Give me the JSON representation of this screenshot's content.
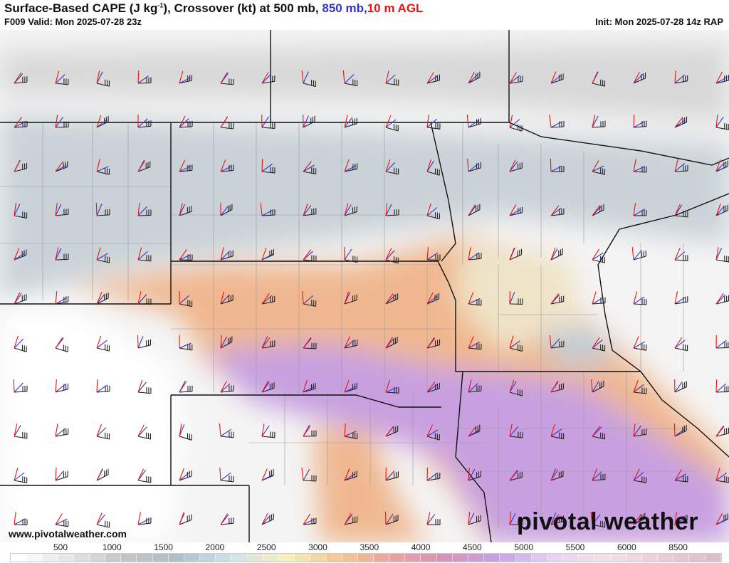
{
  "header": {
    "title_main": "Surface-Based CAPE (J kg",
    "title_exp": "-1",
    "title_rest": "), Crossover (kt) at 500 mb, ",
    "title_850": "850 mb,",
    "title_10m": "10 m AGL",
    "valid": "F009 Valid: Mon 2025-07-28 23z",
    "init": "Init: Mon 2025-07-28 14z RAP"
  },
  "colors": {
    "mb500": "#222222",
    "mb850": "#3333cc",
    "m10": "#ee1111"
  },
  "footer": {
    "url": "www.pivotalweather.com",
    "logo": "pivotal weather"
  },
  "colorbar": {
    "labels": [
      "500",
      "1000",
      "1500",
      "2000",
      "2500",
      "3000",
      "3500",
      "4000",
      "4500",
      "5000",
      "5500",
      "6000",
      "8500"
    ]
  }
}
